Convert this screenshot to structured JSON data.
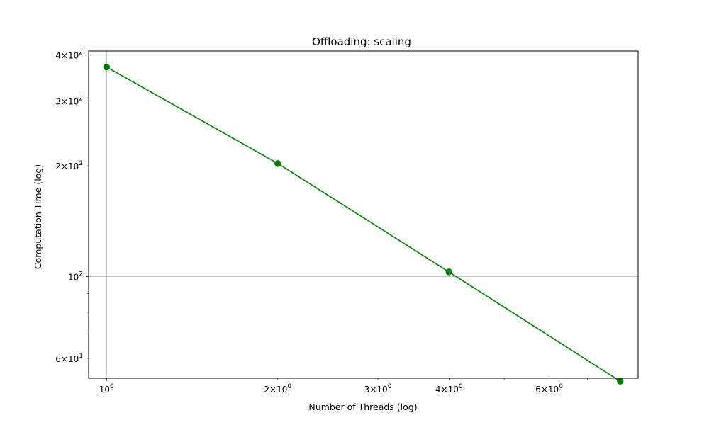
{
  "chart_data": {
    "type": "line",
    "title": "Offloading: scaling",
    "xlabel": "Number of Threads (log)",
    "ylabel": "Computation Time (log)",
    "xscale": "log",
    "yscale": "log",
    "xlim": [
      0.93,
      8.6
    ],
    "ylim": [
      53,
      410
    ],
    "grid": "major",
    "series": [
      {
        "color": "#008000",
        "marker": "circle",
        "x": [
          1,
          2,
          4,
          8
        ],
        "y": [
          371,
          203,
          103,
          52
        ]
      }
    ],
    "x_major_ticks": [
      {
        "value": 1,
        "base": "10",
        "exp": "0"
      }
    ],
    "x_minor_labeled_ticks": [
      {
        "value": 2,
        "mant": "2",
        "base": "10",
        "exp": "0"
      },
      {
        "value": 3,
        "mant": "3",
        "base": "10",
        "exp": "0"
      },
      {
        "value": 4,
        "mant": "4",
        "base": "10",
        "exp": "0"
      },
      {
        "value": 6,
        "mant": "6",
        "base": "10",
        "exp": "0"
      }
    ],
    "x_minor_unlabeled_ticks": [
      5,
      7,
      8
    ],
    "y_major_ticks": [
      {
        "value": 100,
        "base": "10",
        "exp": "2"
      }
    ],
    "y_minor_labeled_ticks": [
      {
        "value": 60,
        "mant": "6",
        "base": "10",
        "exp": "1"
      },
      {
        "value": 200,
        "mant": "2",
        "base": "10",
        "exp": "2"
      },
      {
        "value": 300,
        "mant": "3",
        "base": "10",
        "exp": "2"
      },
      {
        "value": 400,
        "mant": "4",
        "base": "10",
        "exp": "2"
      }
    ],
    "y_minor_unlabeled_ticks": [
      70,
      80,
      90
    ]
  }
}
